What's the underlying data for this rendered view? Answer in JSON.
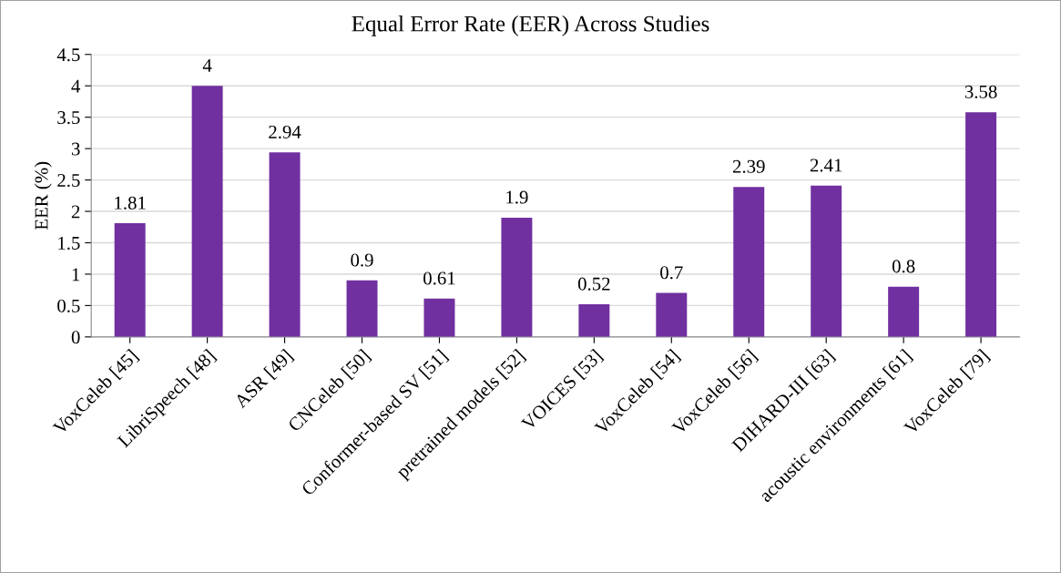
{
  "chart_data": {
    "type": "bar",
    "title": "Equal Error Rate (EER) Across Studies",
    "ylabel": "EER (%)",
    "categories": [
      "VoxCeleb [45]",
      "LibriSpeech [48]",
      "ASR [49]",
      "CNCeleb [50]",
      "Conformer-based SV [51]",
      "pretrained models [52]",
      "VOICES [53]",
      "VoxCeleb [54]",
      "VoxCeleb [56]",
      "DIHARD-III [63]",
      "acoustic environments [61]",
      "VoxCeleb [79]"
    ],
    "values": [
      1.81,
      4,
      2.94,
      0.9,
      0.61,
      1.9,
      0.52,
      0.7,
      2.39,
      2.41,
      0.8,
      3.58
    ],
    "color": "#7030a0",
    "ylim": [
      0,
      4.5
    ],
    "yticks": [
      0,
      0.5,
      1,
      1.5,
      2,
      2.5,
      3,
      3.5,
      4,
      4.5
    ],
    "grid": "y",
    "data_labels": true,
    "legend": false
  }
}
